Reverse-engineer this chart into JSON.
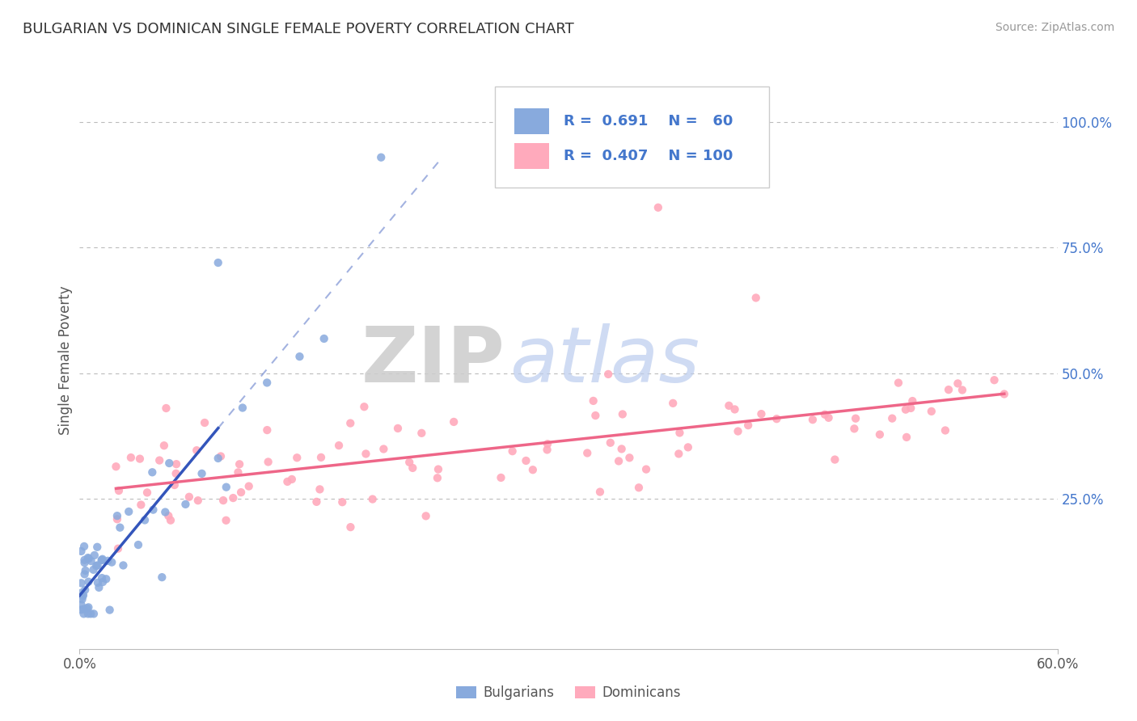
{
  "title": "BULGARIAN VS DOMINICAN SINGLE FEMALE POVERTY CORRELATION CHART",
  "source_text": "Source: ZipAtlas.com",
  "ylabel": "Single Female Poverty",
  "xlim": [
    0.0,
    0.6
  ],
  "ylim": [
    -0.05,
    1.1
  ],
  "xtick_positions": [
    0.0,
    0.6
  ],
  "xtick_labels": [
    "0.0%",
    "60.0%"
  ],
  "ytick_positions_right": [
    0.25,
    0.5,
    0.75,
    1.0
  ],
  "ytick_labels_right": [
    "25.0%",
    "50.0%",
    "75.0%",
    "100.0%"
  ],
  "blue_R": "0.691",
  "blue_N": "60",
  "pink_R": "0.407",
  "pink_N": "100",
  "blue_scatter_color": "#88AADD",
  "pink_scatter_color": "#FFAABC",
  "blue_line_color": "#3355BB",
  "pink_line_color": "#EE6688",
  "grid_color": "#BBBBBB",
  "background_color": "#FFFFFF",
  "watermark_zip_color": "#CCCCCC",
  "watermark_atlas_color": "#AACCEE",
  "legend_label_blue": "Bulgarians",
  "legend_label_pink": "Dominicans",
  "title_color": "#333333",
  "source_color": "#999999",
  "tick_color": "#555555",
  "right_tick_color": "#4477CC"
}
